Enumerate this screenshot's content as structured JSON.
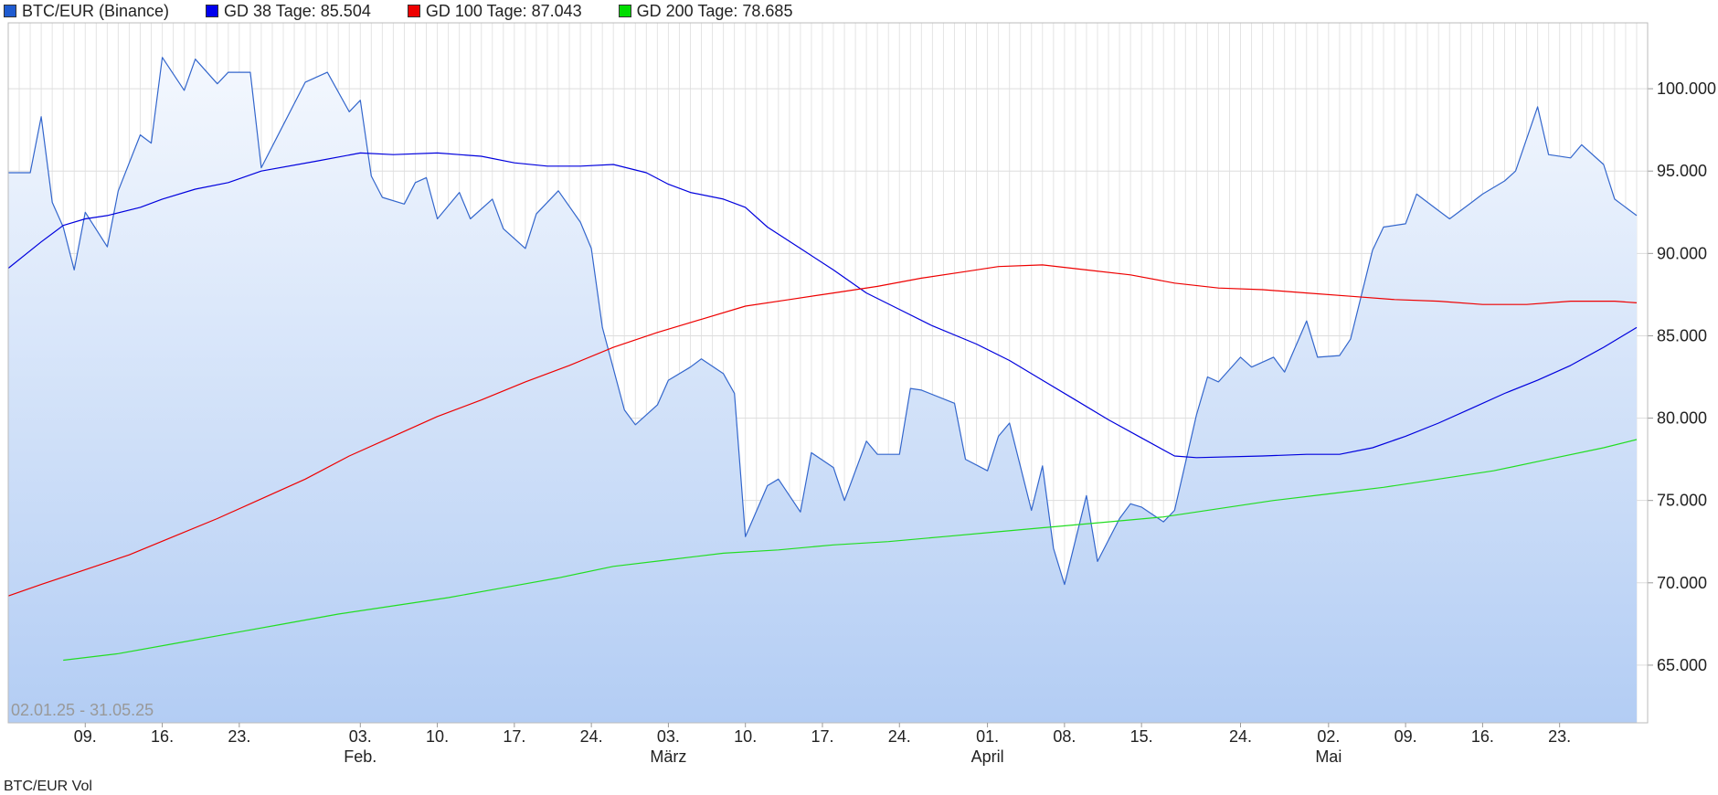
{
  "legend": [
    {
      "label": "BTC/EUR (Binance)",
      "color": "#1f5bd0"
    },
    {
      "label": "GD 38 Tage: 85.504",
      "color": "#0000ee"
    },
    {
      "label": "GD 100 Tage: 87.043",
      "color": "#ee0000"
    },
    {
      "label": "GD 200 Tage: 78.685",
      "color": "#00dd00"
    }
  ],
  "date_range": "02.01.25 - 31.05.25",
  "bottom_legend": "BTC/EUR Vol",
  "chart_data": {
    "type": "line",
    "title": "",
    "ylim": [
      61500,
      104000
    ],
    "x_range": [
      "2025-01-02",
      "2025-05-31"
    ],
    "y_ticks": [
      {
        "value": 65000,
        "label": "65.000"
      },
      {
        "value": 70000,
        "label": "70.000"
      },
      {
        "value": 75000,
        "label": "75.000"
      },
      {
        "value": 80000,
        "label": "80.000"
      },
      {
        "value": 85000,
        "label": "85.000"
      },
      {
        "value": 90000,
        "label": "90.000"
      },
      {
        "value": 95000,
        "label": "95.000"
      },
      {
        "value": 100000,
        "label": "100.000"
      }
    ],
    "x_ticks": [
      {
        "date": "2025-01-09",
        "label": "09."
      },
      {
        "date": "2025-01-16",
        "label": "16."
      },
      {
        "date": "2025-01-23",
        "label": "23."
      },
      {
        "date": "2025-02-03",
        "label": "03."
      },
      {
        "date": "2025-02-10",
        "label": "10."
      },
      {
        "date": "2025-02-17",
        "label": "17."
      },
      {
        "date": "2025-02-24",
        "label": "24."
      },
      {
        "date": "2025-03-03",
        "label": "03."
      },
      {
        "date": "2025-03-10",
        "label": "10."
      },
      {
        "date": "2025-03-17",
        "label": "17."
      },
      {
        "date": "2025-03-24",
        "label": "24."
      },
      {
        "date": "2025-04-01",
        "label": "01."
      },
      {
        "date": "2025-04-08",
        "label": "08."
      },
      {
        "date": "2025-04-15",
        "label": "15."
      },
      {
        "date": "2025-04-24",
        "label": "24."
      },
      {
        "date": "2025-05-02",
        "label": "02."
      },
      {
        "date": "2025-05-09",
        "label": "09."
      },
      {
        "date": "2025-05-16",
        "label": "16."
      },
      {
        "date": "2025-05-23",
        "label": "23."
      }
    ],
    "month_labels": [
      {
        "date": "2025-02-03",
        "label": "Feb."
      },
      {
        "date": "2025-03-03",
        "label": "März"
      },
      {
        "date": "2025-04-01",
        "label": "April"
      },
      {
        "date": "2025-05-02",
        "label": "Mai"
      }
    ],
    "series": [
      {
        "name": "BTC/EUR (Binance)",
        "color": "#3366cc",
        "area": true,
        "points": [
          [
            "2025-01-02",
            94900
          ],
          [
            "2025-01-04",
            94900
          ],
          [
            "2025-01-05",
            98300
          ],
          [
            "2025-01-06",
            93100
          ],
          [
            "2025-01-07",
            91600
          ],
          [
            "2025-01-08",
            89000
          ],
          [
            "2025-01-09",
            92500
          ],
          [
            "2025-01-11",
            90400
          ],
          [
            "2025-01-12",
            93800
          ],
          [
            "2025-01-14",
            97200
          ],
          [
            "2025-01-15",
            96700
          ],
          [
            "2025-01-16",
            101900
          ],
          [
            "2025-01-18",
            99900
          ],
          [
            "2025-01-19",
            101800
          ],
          [
            "2025-01-21",
            100300
          ],
          [
            "2025-01-22",
            101000
          ],
          [
            "2025-01-24",
            101000
          ],
          [
            "2025-01-25",
            95200
          ],
          [
            "2025-01-27",
            97800
          ],
          [
            "2025-01-29",
            100400
          ],
          [
            "2025-01-31",
            101000
          ],
          [
            "2025-02-02",
            98600
          ],
          [
            "2025-02-03",
            99300
          ],
          [
            "2025-02-04",
            94700
          ],
          [
            "2025-02-05",
            93400
          ],
          [
            "2025-02-07",
            93000
          ],
          [
            "2025-02-08",
            94300
          ],
          [
            "2025-02-09",
            94600
          ],
          [
            "2025-02-10",
            92100
          ],
          [
            "2025-02-12",
            93700
          ],
          [
            "2025-02-13",
            92100
          ],
          [
            "2025-02-15",
            93300
          ],
          [
            "2025-02-16",
            91500
          ],
          [
            "2025-02-18",
            90300
          ],
          [
            "2025-02-19",
            92400
          ],
          [
            "2025-02-21",
            93800
          ],
          [
            "2025-02-23",
            91900
          ],
          [
            "2025-02-24",
            90300
          ],
          [
            "2025-02-25",
            85500
          ],
          [
            "2025-02-27",
            80500
          ],
          [
            "2025-02-28",
            79600
          ],
          [
            "2025-03-02",
            80800
          ],
          [
            "2025-03-03",
            82300
          ],
          [
            "2025-03-05",
            83100
          ],
          [
            "2025-03-06",
            83600
          ],
          [
            "2025-03-08",
            82700
          ],
          [
            "2025-03-09",
            81500
          ],
          [
            "2025-03-10",
            72800
          ],
          [
            "2025-03-12",
            75900
          ],
          [
            "2025-03-13",
            76300
          ],
          [
            "2025-03-15",
            74300
          ],
          [
            "2025-03-16",
            77900
          ],
          [
            "2025-03-18",
            77000
          ],
          [
            "2025-03-19",
            75000
          ],
          [
            "2025-03-21",
            78600
          ],
          [
            "2025-03-22",
            77800
          ],
          [
            "2025-03-24",
            77800
          ],
          [
            "2025-03-25",
            81800
          ],
          [
            "2025-03-26",
            81700
          ],
          [
            "2025-03-29",
            80900
          ],
          [
            "2025-03-30",
            77500
          ],
          [
            "2025-04-01",
            76800
          ],
          [
            "2025-04-02",
            78900
          ],
          [
            "2025-04-03",
            79700
          ],
          [
            "2025-04-05",
            74400
          ],
          [
            "2025-04-06",
            77100
          ],
          [
            "2025-04-07",
            72100
          ],
          [
            "2025-04-08",
            69900
          ],
          [
            "2025-04-10",
            75300
          ],
          [
            "2025-04-11",
            71300
          ],
          [
            "2025-04-13",
            73900
          ],
          [
            "2025-04-14",
            74800
          ],
          [
            "2025-04-15",
            74600
          ],
          [
            "2025-04-17",
            73700
          ],
          [
            "2025-04-18",
            74400
          ],
          [
            "2025-04-20",
            80200
          ],
          [
            "2025-04-21",
            82500
          ],
          [
            "2025-04-22",
            82200
          ],
          [
            "2025-04-24",
            83700
          ],
          [
            "2025-04-25",
            83100
          ],
          [
            "2025-04-27",
            83700
          ],
          [
            "2025-04-28",
            82800
          ],
          [
            "2025-04-30",
            85900
          ],
          [
            "2025-05-01",
            83700
          ],
          [
            "2025-05-03",
            83800
          ],
          [
            "2025-05-04",
            84800
          ],
          [
            "2025-05-06",
            90200
          ],
          [
            "2025-05-07",
            91600
          ],
          [
            "2025-05-09",
            91800
          ],
          [
            "2025-05-10",
            93600
          ],
          [
            "2025-05-12",
            92600
          ],
          [
            "2025-05-13",
            92100
          ],
          [
            "2025-05-15",
            93100
          ],
          [
            "2025-05-16",
            93600
          ],
          [
            "2025-05-18",
            94400
          ],
          [
            "2025-05-19",
            95000
          ],
          [
            "2025-05-21",
            98900
          ],
          [
            "2025-05-22",
            96000
          ],
          [
            "2025-05-24",
            95800
          ],
          [
            "2025-05-25",
            96600
          ],
          [
            "2025-05-27",
            95400
          ],
          [
            "2025-05-28",
            93300
          ],
          [
            "2025-05-30",
            92300
          ]
        ]
      },
      {
        "name": "GD 38 Tage",
        "color": "#0000dd",
        "points": [
          [
            "2025-01-02",
            89100
          ],
          [
            "2025-01-05",
            90700
          ],
          [
            "2025-01-07",
            91700
          ],
          [
            "2025-01-09",
            92100
          ],
          [
            "2025-01-11",
            92300
          ],
          [
            "2025-01-14",
            92800
          ],
          [
            "2025-01-16",
            93300
          ],
          [
            "2025-01-19",
            93900
          ],
          [
            "2025-01-22",
            94300
          ],
          [
            "2025-01-25",
            95000
          ],
          [
            "2025-01-30",
            95600
          ],
          [
            "2025-02-03",
            96100
          ],
          [
            "2025-02-06",
            96000
          ],
          [
            "2025-02-10",
            96100
          ],
          [
            "2025-02-14",
            95900
          ],
          [
            "2025-02-17",
            95500
          ],
          [
            "2025-02-20",
            95300
          ],
          [
            "2025-02-23",
            95300
          ],
          [
            "2025-02-26",
            95400
          ],
          [
            "2025-03-01",
            94900
          ],
          [
            "2025-03-03",
            94200
          ],
          [
            "2025-03-05",
            93700
          ],
          [
            "2025-03-08",
            93300
          ],
          [
            "2025-03-10",
            92800
          ],
          [
            "2025-03-12",
            91600
          ],
          [
            "2025-03-15",
            90300
          ],
          [
            "2025-03-18",
            89000
          ],
          [
            "2025-03-21",
            87600
          ],
          [
            "2025-03-24",
            86600
          ],
          [
            "2025-03-27",
            85600
          ],
          [
            "2025-03-31",
            84500
          ],
          [
            "2025-04-03",
            83500
          ],
          [
            "2025-04-06",
            82300
          ],
          [
            "2025-04-09",
            81100
          ],
          [
            "2025-04-12",
            79900
          ],
          [
            "2025-04-15",
            78800
          ],
          [
            "2025-04-18",
            77700
          ],
          [
            "2025-04-20",
            77600
          ],
          [
            "2025-04-26",
            77700
          ],
          [
            "2025-04-30",
            77800
          ],
          [
            "2025-05-03",
            77800
          ],
          [
            "2025-05-06",
            78200
          ],
          [
            "2025-05-09",
            78900
          ],
          [
            "2025-05-12",
            79700
          ],
          [
            "2025-05-15",
            80600
          ],
          [
            "2025-05-18",
            81500
          ],
          [
            "2025-05-21",
            82300
          ],
          [
            "2025-05-24",
            83200
          ],
          [
            "2025-05-27",
            84300
          ],
          [
            "2025-05-30",
            85500
          ]
        ]
      },
      {
        "name": "GD 100 Tage",
        "color": "#ee0000",
        "points": [
          [
            "2025-01-02",
            69200
          ],
          [
            "2025-01-05",
            69900
          ],
          [
            "2025-01-09",
            70800
          ],
          [
            "2025-01-13",
            71700
          ],
          [
            "2025-01-17",
            72800
          ],
          [
            "2025-01-21",
            73900
          ],
          [
            "2025-01-25",
            75100
          ],
          [
            "2025-01-29",
            76300
          ],
          [
            "2025-02-02",
            77700
          ],
          [
            "2025-02-06",
            78900
          ],
          [
            "2025-02-10",
            80100
          ],
          [
            "2025-02-14",
            81100
          ],
          [
            "2025-02-18",
            82200
          ],
          [
            "2025-02-22",
            83200
          ],
          [
            "2025-02-26",
            84300
          ],
          [
            "2025-03-02",
            85200
          ],
          [
            "2025-03-06",
            86000
          ],
          [
            "2025-03-10",
            86800
          ],
          [
            "2025-03-14",
            87200
          ],
          [
            "2025-03-18",
            87600
          ],
          [
            "2025-03-22",
            88000
          ],
          [
            "2025-03-26",
            88500
          ],
          [
            "2025-03-30",
            88900
          ],
          [
            "2025-04-02",
            89200
          ],
          [
            "2025-04-06",
            89300
          ],
          [
            "2025-04-10",
            89000
          ],
          [
            "2025-04-14",
            88700
          ],
          [
            "2025-04-18",
            88200
          ],
          [
            "2025-04-22",
            87900
          ],
          [
            "2025-04-26",
            87800
          ],
          [
            "2025-04-30",
            87600
          ],
          [
            "2025-05-04",
            87400
          ],
          [
            "2025-05-08",
            87200
          ],
          [
            "2025-05-12",
            87100
          ],
          [
            "2025-05-16",
            86900
          ],
          [
            "2025-05-20",
            86900
          ],
          [
            "2025-05-24",
            87100
          ],
          [
            "2025-05-28",
            87100
          ],
          [
            "2025-05-30",
            87000
          ]
        ]
      },
      {
        "name": "GD 200 Tage",
        "color": "#22dd22",
        "points": [
          [
            "2025-01-07",
            65300
          ],
          [
            "2025-01-12",
            65700
          ],
          [
            "2025-01-17",
            66300
          ],
          [
            "2025-01-22",
            66900
          ],
          [
            "2025-01-27",
            67500
          ],
          [
            "2025-02-01",
            68100
          ],
          [
            "2025-02-06",
            68600
          ],
          [
            "2025-02-11",
            69100
          ],
          [
            "2025-02-16",
            69700
          ],
          [
            "2025-02-21",
            70300
          ],
          [
            "2025-02-26",
            71000
          ],
          [
            "2025-03-03",
            71400
          ],
          [
            "2025-03-08",
            71800
          ],
          [
            "2025-03-13",
            72000
          ],
          [
            "2025-03-18",
            72300
          ],
          [
            "2025-03-23",
            72500
          ],
          [
            "2025-03-28",
            72800
          ],
          [
            "2025-04-02",
            73100
          ],
          [
            "2025-04-07",
            73400
          ],
          [
            "2025-04-12",
            73700
          ],
          [
            "2025-04-17",
            74000
          ],
          [
            "2025-04-22",
            74500
          ],
          [
            "2025-04-27",
            75000
          ],
          [
            "2025-05-02",
            75400
          ],
          [
            "2025-05-07",
            75800
          ],
          [
            "2025-05-12",
            76300
          ],
          [
            "2025-05-17",
            76800
          ],
          [
            "2025-05-22",
            77500
          ],
          [
            "2025-05-27",
            78200
          ],
          [
            "2025-05-30",
            78700
          ]
        ]
      }
    ]
  }
}
